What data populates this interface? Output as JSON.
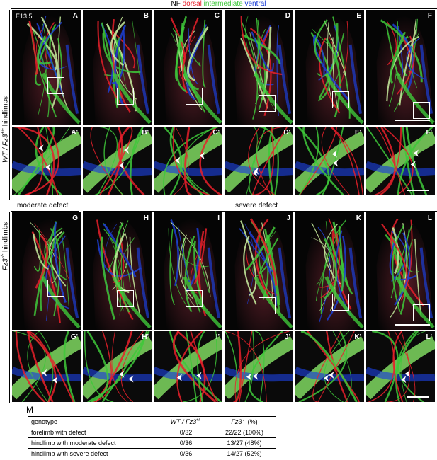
{
  "legend": {
    "nf": "NF",
    "dorsal": "dorsal",
    "intermediate": "intermediate",
    "ventral": "ventral"
  },
  "colors": {
    "dorsal": "#e8202a",
    "intermediate": "#3ec83a",
    "ventral": "#1c3fd6",
    "background": "#050505",
    "box": "#ffffff"
  },
  "row_labels": {
    "wt": {
      "genotype": "WT / Fz3",
      "sup": "+/-",
      "suffix": " hindlimbs"
    },
    "ko": {
      "genotype": "Fz3",
      "sup": "-/-",
      "suffix": " hindlimbs"
    }
  },
  "section_labels": {
    "moderate": "moderate defect",
    "severe": "severe defect"
  },
  "stage": "E13.5",
  "panels_top": [
    "A",
    "B",
    "C",
    "D",
    "E",
    "F"
  ],
  "panels_top_zoom": [
    "A'",
    "B'",
    "C'",
    "D'",
    "E'",
    "F'"
  ],
  "panels_bottom": [
    "G",
    "H",
    "I",
    "J",
    "K",
    "L"
  ],
  "panels_bottom_zoom": [
    "G'",
    "H'",
    "I'",
    "J'",
    "K'",
    "L'"
  ],
  "table": {
    "label": "M",
    "headers": {
      "genotype": "genotype",
      "wt": "WT / Fz3",
      "wt_sup": "+/-",
      "ko": "Fz3",
      "ko_sup": "-/-",
      "ko_suffix": " (%)"
    },
    "rows": [
      {
        "genotype": "forelimb with defect",
        "wt": "0/32",
        "ko": "22/22 (100%)"
      },
      {
        "genotype": "hindlimb with moderate defect",
        "wt": "0/36",
        "ko": "13/27 (48%)"
      },
      {
        "genotype": "hindlimb with severe defect",
        "wt": "0/36",
        "ko": "14/27 (52%)"
      }
    ]
  }
}
